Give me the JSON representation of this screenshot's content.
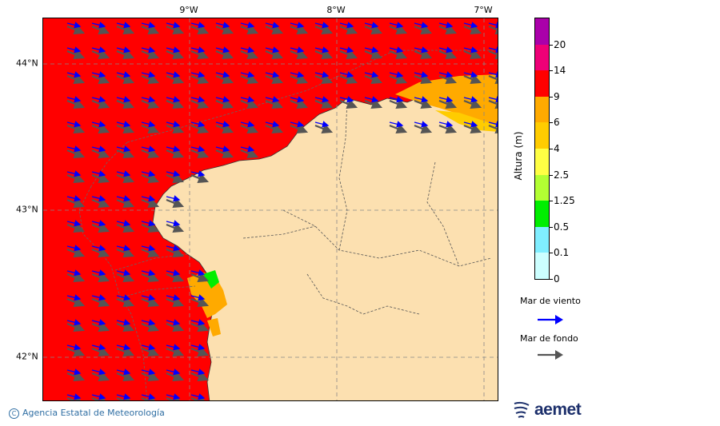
{
  "lon_labels": [
    "9°W",
    "8°W",
    "7°W"
  ],
  "lat_labels": [
    "44°N",
    "43°N",
    "42°N"
  ],
  "colorbar": {
    "title": "Altura (m)",
    "levels": [
      "0",
      "0.1",
      "0.5",
      "1.25",
      "2.5",
      "4",
      "6",
      "9",
      "14",
      "20"
    ],
    "colors": [
      "#ccffff",
      "#80eeff",
      "#00ee00",
      "#b3ff33",
      "#ffff44",
      "#ffcc00",
      "#ffaa00",
      "#ff0000",
      "#ee0077",
      "#aa00aa"
    ]
  },
  "legend": {
    "wind_sea_label": "Mar de viento",
    "swell_label": "Mar de fondo",
    "wind_sea_color": "#0000ff",
    "swell_color": "#555555"
  },
  "colors": {
    "land": "#fce0b0",
    "sea_high": "#ff0000",
    "sea_mid": "#ffaa00"
  },
  "footer": {
    "copyright_symbol": "C",
    "copyright_text": "Agencia Estatal de Meteorología",
    "logo_text": "aemet"
  }
}
